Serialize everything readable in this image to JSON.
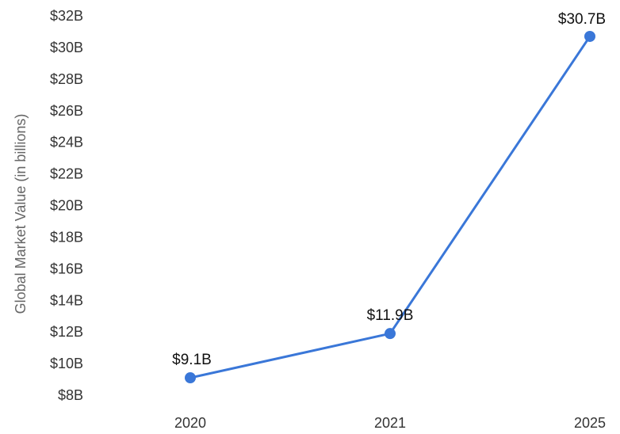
{
  "colors": {
    "series": "#3a77d8",
    "text": "#333333",
    "axis_title": "#666666",
    "background": "#ffffff"
  },
  "chart_data": {
    "type": "line",
    "title": "",
    "xlabel": "",
    "ylabel": "Global Market Value (in billions)",
    "categories": [
      "2020",
      "2021",
      "2025"
    ],
    "series": [
      {
        "values": [
          9.1,
          11.9,
          30.7
        ]
      }
    ],
    "data_labels": [
      "$9.1B",
      "$11.9B",
      "$30.7B"
    ],
    "ylim": [
      8,
      32
    ],
    "y_ticks": [
      8,
      10,
      12,
      14,
      16,
      18,
      20,
      22,
      24,
      26,
      28,
      30,
      32
    ],
    "y_tick_labels": [
      "$8B",
      "$10B",
      "$12B",
      "$14B",
      "$16B",
      "$18B",
      "$20B",
      "$22B",
      "$24B",
      "$26B",
      "$28B",
      "$30B",
      "$32B"
    ],
    "grid": false,
    "legend": "none"
  }
}
